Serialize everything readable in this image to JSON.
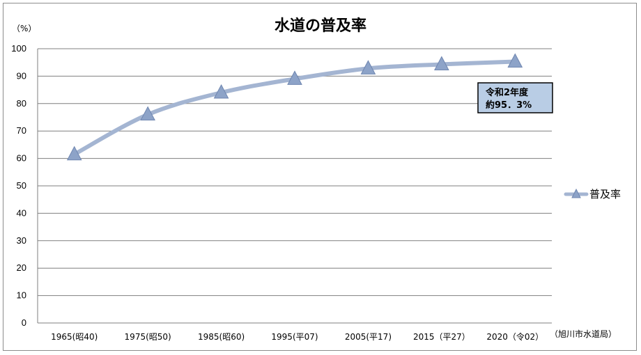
{
  "chart_data": {
    "type": "line",
    "title": "水道の普及率",
    "y_unit": "（%）",
    "source": "（旭川市水道局）",
    "categories": [
      "1965(昭40)",
      "1975(昭50)",
      "1985(昭60)",
      "1995(平07)",
      "2005(平17)",
      "2015（平27）",
      "2020（令02）"
    ],
    "series": [
      {
        "name": "普及率",
        "values": [
          61.5,
          76.0,
          84.0,
          89.0,
          92.8,
          94.3,
          95.3
        ]
      }
    ],
    "ylim": [
      0,
      100
    ],
    "yticks": [
      "0",
      "10",
      "20",
      "30",
      "40",
      "50",
      "60",
      "70",
      "80",
      "90",
      "100"
    ],
    "grid": true,
    "legend_position": "right",
    "annotation": {
      "line1": "令和2年度",
      "line2": "約95．3%"
    },
    "colors": {
      "line": "#a4b5d2",
      "marker": "#8da3c8",
      "marker_edge": "#6f86b0",
      "annotation_bg": "#b9cde5",
      "grid": "#7f7f7f"
    }
  }
}
